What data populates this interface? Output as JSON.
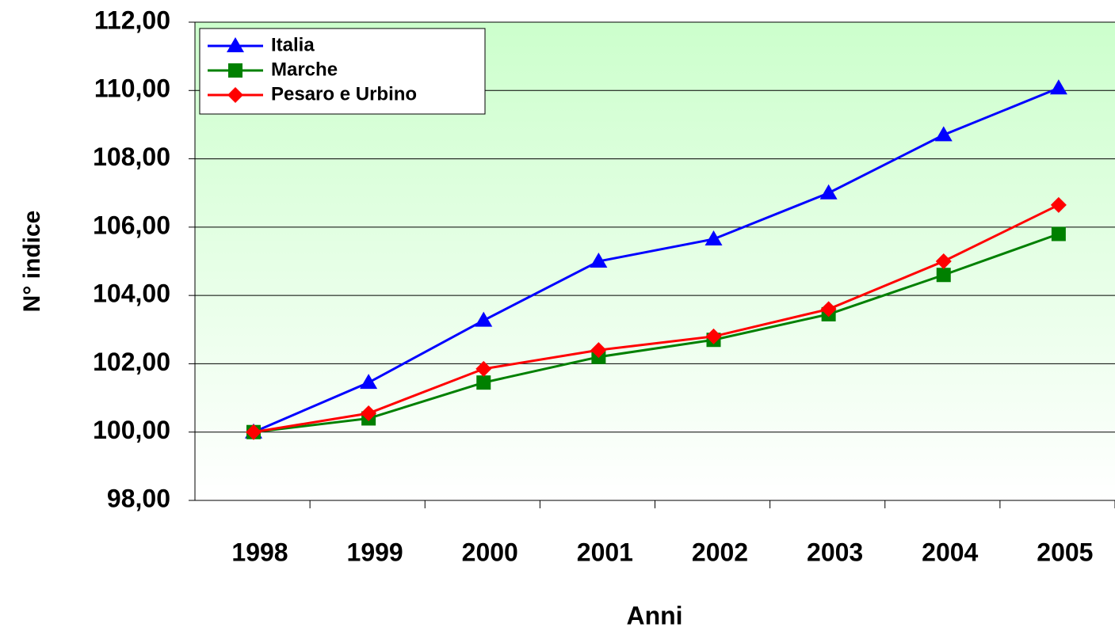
{
  "chart_data": {
    "type": "line",
    "xlabel": "Anni",
    "ylabel": "N° indice",
    "categories": [
      "1998",
      "1999",
      "2000",
      "2001",
      "2002",
      "2003",
      "2004",
      "2005"
    ],
    "series": [
      {
        "name": "Italia",
        "color": "#0000ff",
        "marker": "triangle",
        "values": [
          100.0,
          101.45,
          103.27,
          105.0,
          105.65,
          107.0,
          108.7,
          110.07
        ]
      },
      {
        "name": "Marche",
        "color": "#008000",
        "marker": "square",
        "values": [
          100.0,
          100.4,
          101.45,
          102.2,
          102.7,
          103.45,
          104.6,
          105.8
        ]
      },
      {
        "name": "Pesaro e Urbino",
        "color": "#ff0000",
        "marker": "diamond",
        "values": [
          100.0,
          100.55,
          101.85,
          102.4,
          102.8,
          103.6,
          105.0,
          106.65
        ]
      }
    ],
    "ylim": [
      98,
      112
    ],
    "yticks": [
      {
        "value": 98,
        "label": "98,00"
      },
      {
        "value": 100,
        "label": "100,00"
      },
      {
        "value": 102,
        "label": "102,00"
      },
      {
        "value": 104,
        "label": "104,00"
      },
      {
        "value": 106,
        "label": "106,00"
      },
      {
        "value": 108,
        "label": "108,00"
      },
      {
        "value": 110,
        "label": "110,00"
      },
      {
        "value": 112,
        "label": "112,00"
      }
    ],
    "grid": true,
    "legend": "top-left"
  }
}
